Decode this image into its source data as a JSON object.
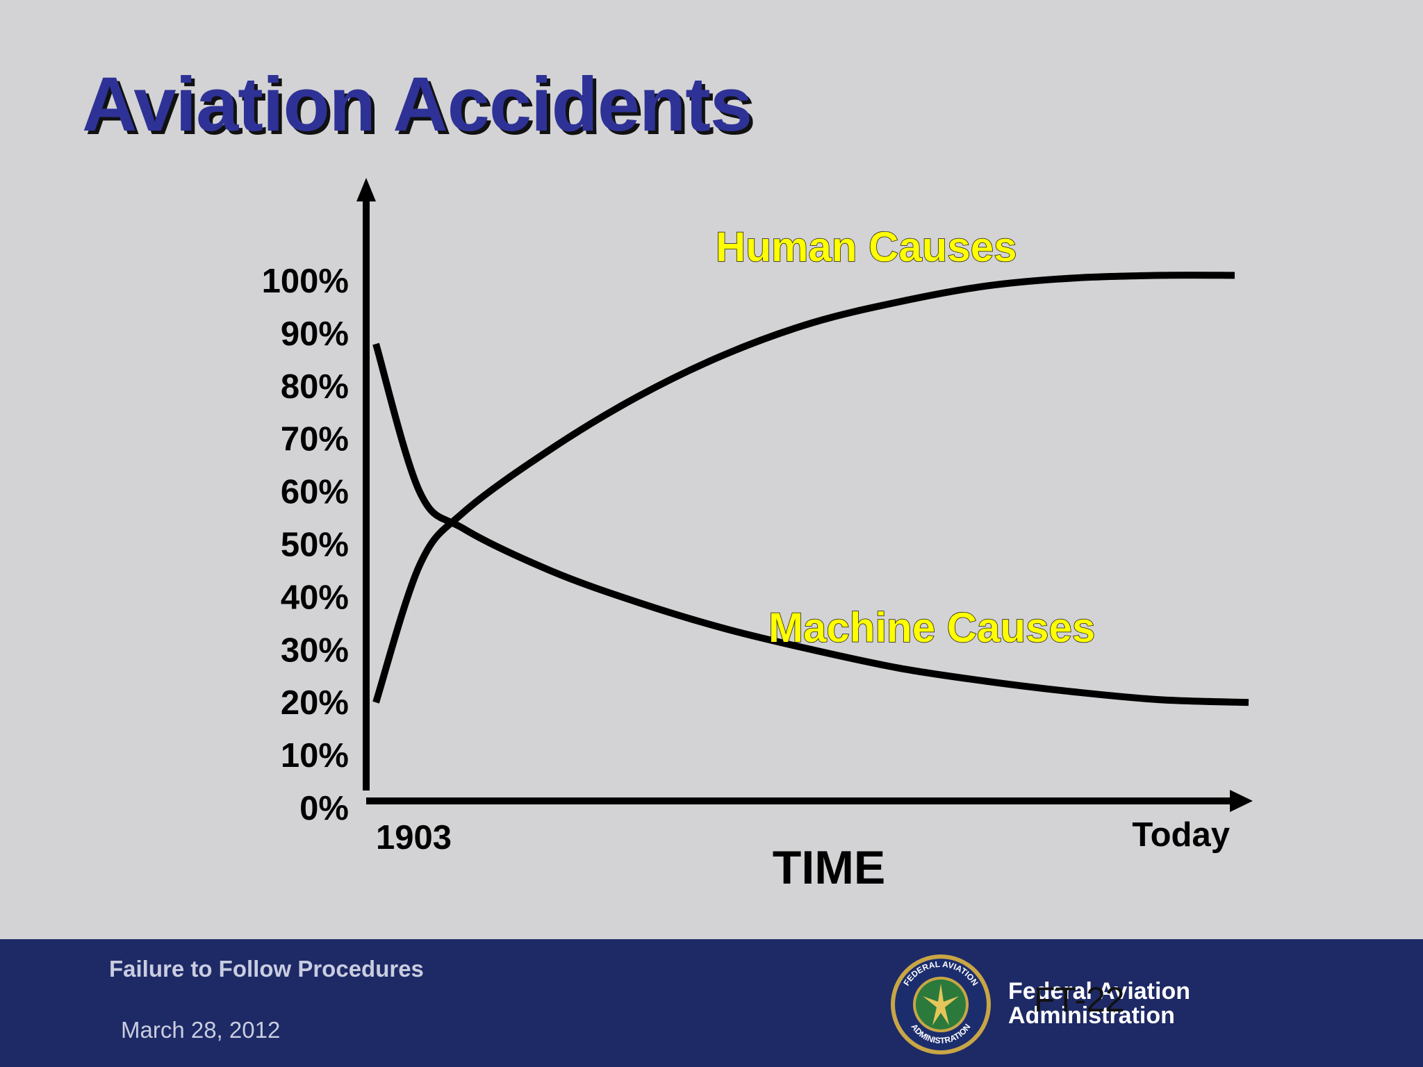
{
  "slide": {
    "title": "Aviation Accidents"
  },
  "chart_data": {
    "type": "line",
    "title": "Aviation Accidents",
    "xlabel": "TIME",
    "ylabel": "",
    "x_tick_labels": [
      "1903",
      "Today"
    ],
    "y_tick_labels": [
      "100%",
      "90%",
      "80%",
      "70%",
      "60%",
      "50%",
      "40%",
      "30%",
      "20%",
      "10%",
      "0%"
    ],
    "ylim": [
      0,
      100
    ],
    "x": [
      0,
      0.05,
      0.1,
      0.2,
      0.3,
      0.4,
      0.5,
      0.6,
      0.7,
      0.8,
      0.9,
      1.0
    ],
    "series": [
      {
        "name": "Human Causes",
        "values": [
          20,
          46,
          56,
          68,
          78,
          86,
          92,
          96,
          99,
          100.5,
          101,
          101
        ]
      },
      {
        "name": "Machine Causes",
        "values": [
          88,
          60,
          53,
          45,
          39,
          34,
          30,
          26.5,
          24,
          22,
          20.5,
          20
        ]
      }
    ],
    "line_color": "#000000",
    "label_color": "#ffff00",
    "grid": false,
    "legend": "none"
  },
  "footer": {
    "course": "Failure to Follow Procedures",
    "date": "March 28, 2012",
    "agency_line1": "Federal Aviation",
    "agency_line2": "Administration",
    "slide_number": "FT-22",
    "seal_text_top": "FEDERAL AVIATION",
    "seal_text_bottom": "ADMINISTRATION",
    "seal_icon": "faa-seal-icon"
  },
  "colors": {
    "background": "#d3d3d5",
    "title": "#2e3296",
    "footer": "#1e2a66"
  }
}
